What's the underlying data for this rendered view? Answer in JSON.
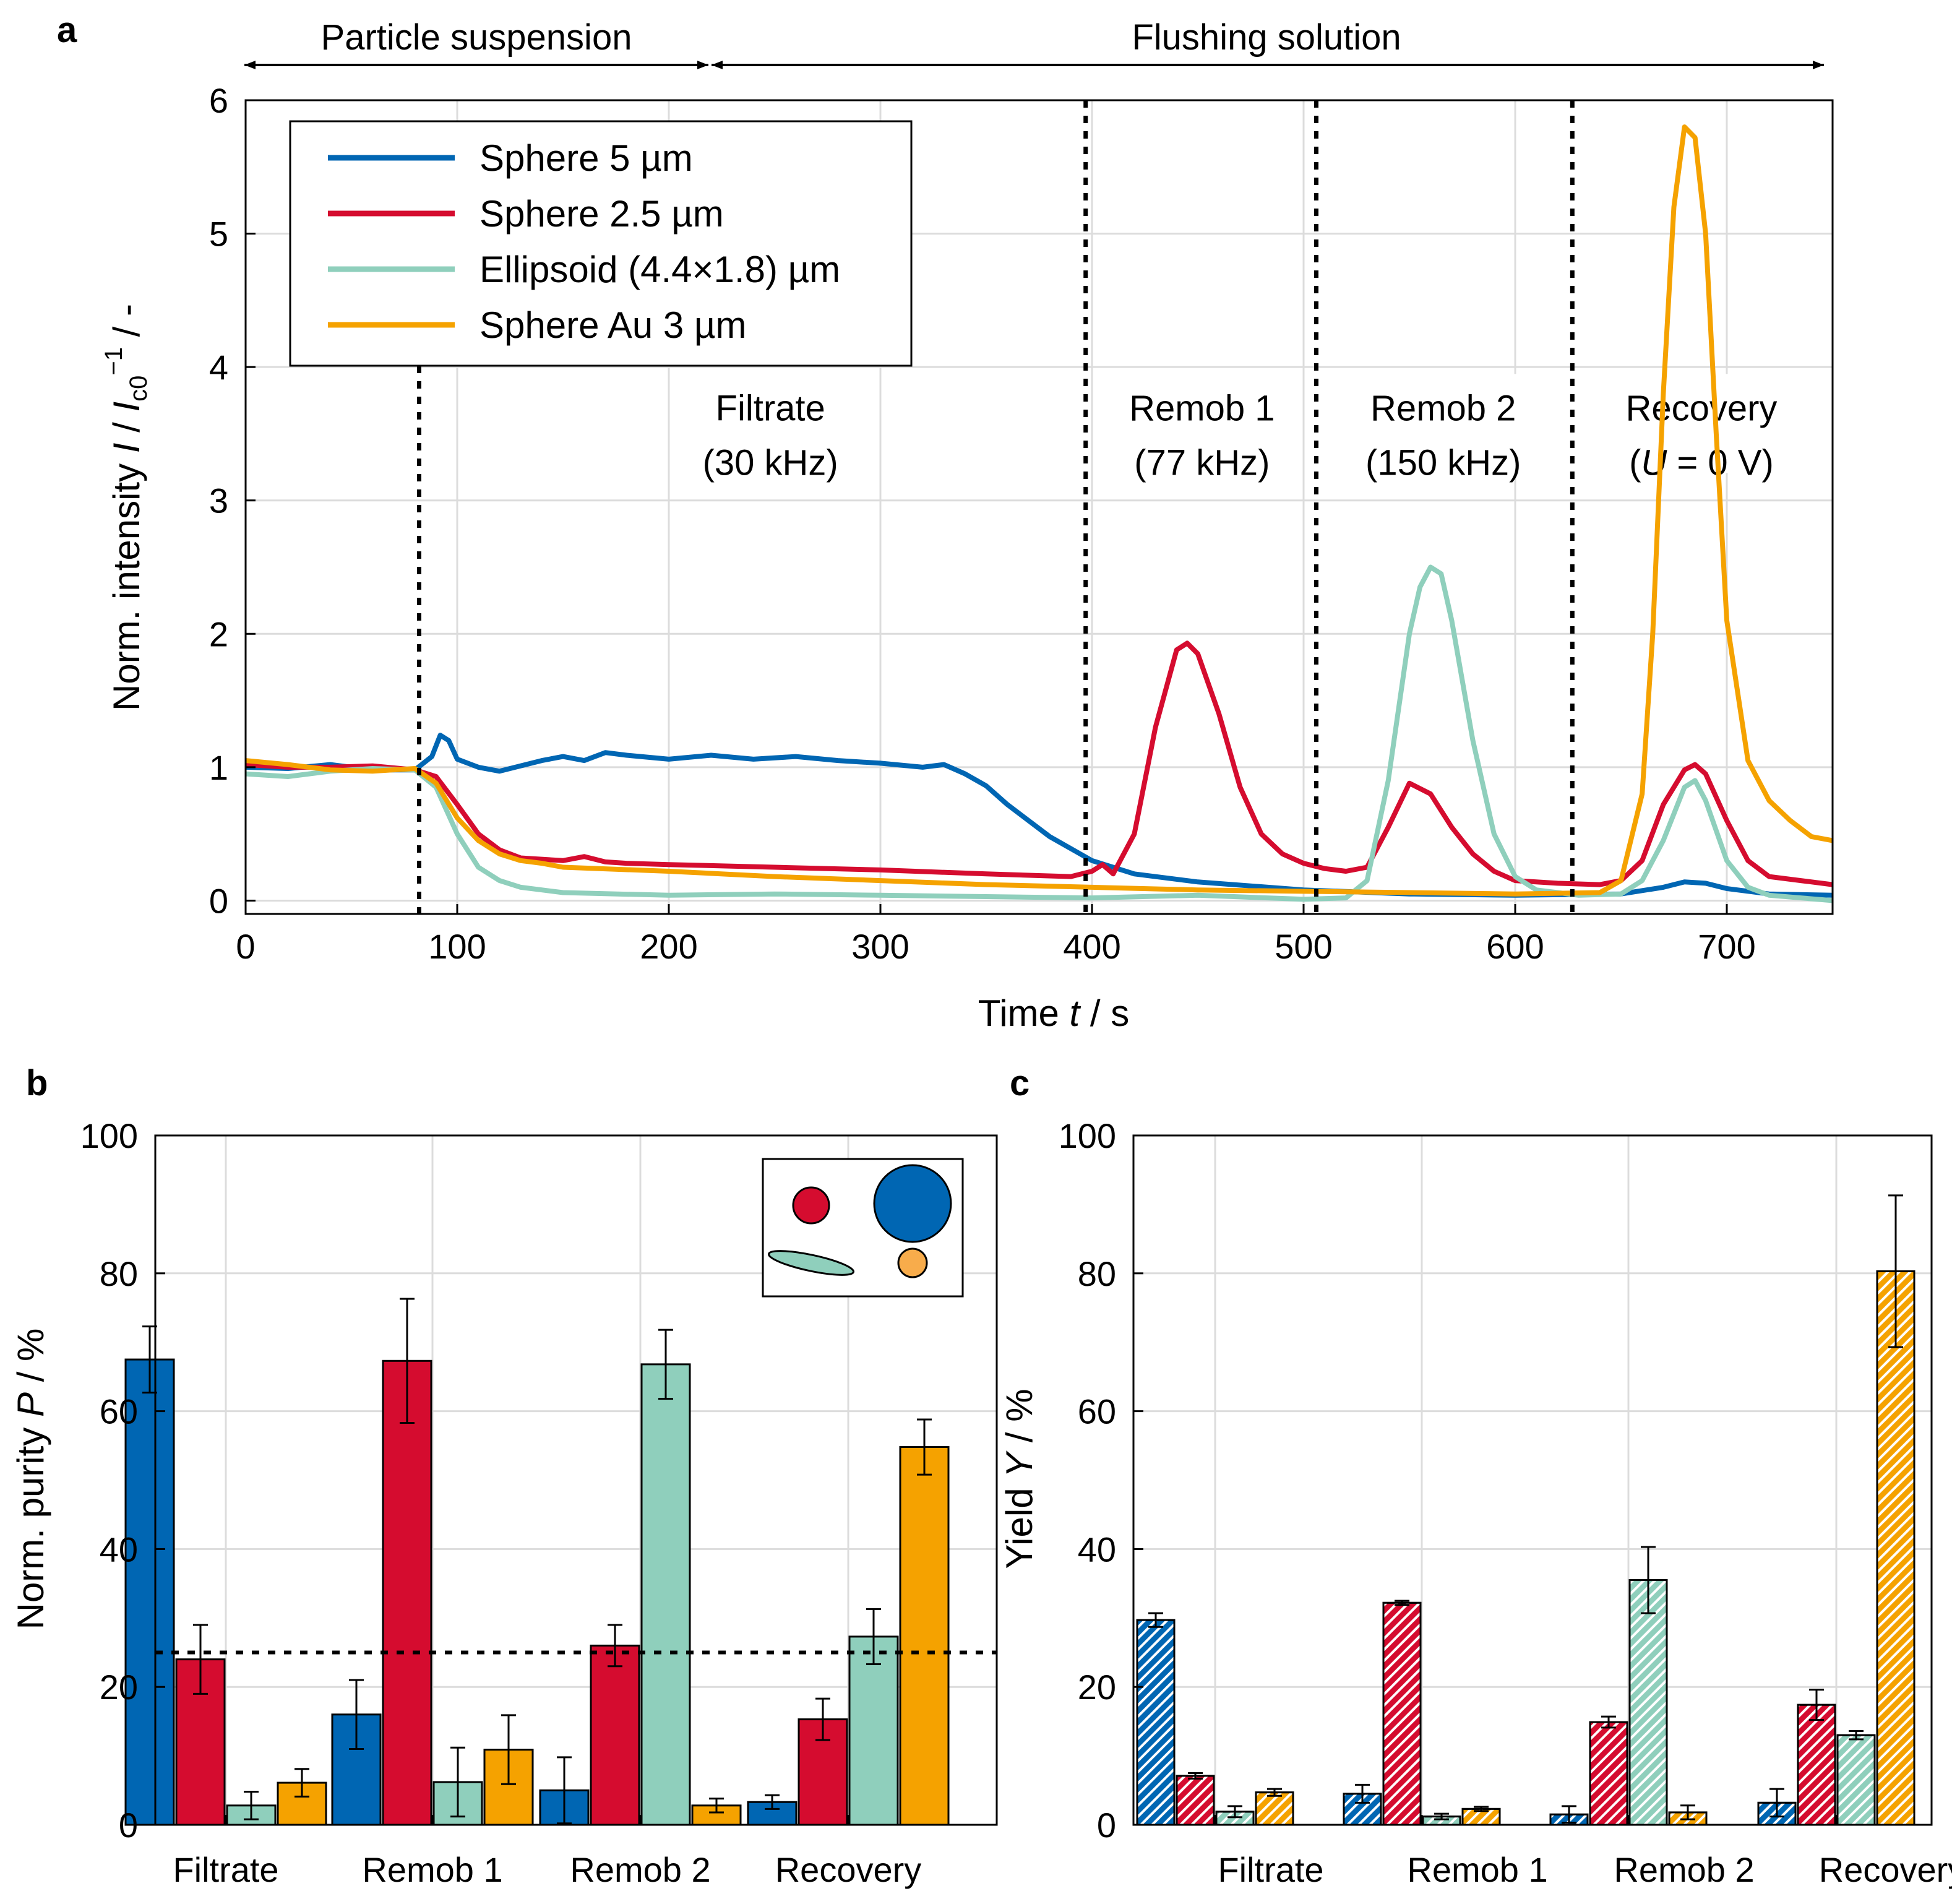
{
  "colors": {
    "sphere5": "#0066b3",
    "sphere25": "#d50c2f",
    "ellipsoid": "#8fcfbc",
    "au3": "#f5a200",
    "grid": "#dcdcdc"
  },
  "chart_data": [
    {
      "panel": "a",
      "type": "line",
      "xlabel": "Time t / s",
      "ylabel": "Norm. intensity I / Ic0⁻¹ / -",
      "xlim": [
        0,
        750
      ],
      "ylim": [
        -0.1,
        6
      ],
      "xticks": [
        "0",
        "100",
        "200",
        "300",
        "400",
        "500",
        "600",
        "700"
      ],
      "yticks": [
        "0",
        "1",
        "2",
        "3",
        "4",
        "5",
        "6"
      ],
      "grid": true,
      "legend_position": "top-left",
      "top_annotations": {
        "left": "Particle suspension",
        "right": "Flushing solution",
        "boundary_x": 222
      },
      "phase_lines_x": [
        82,
        397,
        506,
        627
      ],
      "phase_labels": [
        {
          "line1": "Filtrate",
          "line2": "(30 kHz)",
          "x": 248
        },
        {
          "line1": "Remob 1",
          "line2": "(77 kHz)",
          "x": 452
        },
        {
          "line1": "Remob 2",
          "line2": "(150 kHz)",
          "x": 566
        },
        {
          "line1": "Recovery",
          "line2": "(U = 0 V)",
          "x": 688
        }
      ],
      "series": [
        {
          "name": "Sphere 5 µm",
          "color_key": "sphere5",
          "x": [
            0,
            20,
            40,
            60,
            80,
            88,
            92,
            96,
            100,
            110,
            120,
            140,
            150,
            160,
            170,
            180,
            200,
            220,
            240,
            260,
            280,
            300,
            320,
            330,
            340,
            350,
            360,
            380,
            400,
            420,
            450,
            500,
            550,
            600,
            650,
            670,
            680,
            690,
            700,
            720,
            750
          ],
          "y": [
            1.0,
            0.99,
            1.02,
            0.98,
            0.98,
            1.08,
            1.24,
            1.2,
            1.06,
            1.0,
            0.97,
            1.05,
            1.08,
            1.05,
            1.11,
            1.09,
            1.06,
            1.09,
            1.06,
            1.08,
            1.05,
            1.03,
            1.0,
            1.02,
            0.95,
            0.86,
            0.72,
            0.48,
            0.3,
            0.2,
            0.14,
            0.08,
            0.05,
            0.04,
            0.05,
            0.1,
            0.14,
            0.13,
            0.09,
            0.05,
            0.04
          ]
        },
        {
          "name": "Sphere 2.5 µm",
          "color_key": "sphere25",
          "x": [
            0,
            20,
            40,
            60,
            80,
            90,
            100,
            110,
            120,
            130,
            150,
            160,
            170,
            180,
            200,
            250,
            300,
            350,
            390,
            400,
            405,
            410,
            420,
            430,
            440,
            445,
            450,
            460,
            470,
            480,
            490,
            500,
            510,
            520,
            530,
            540,
            550,
            560,
            570,
            580,
            590,
            600,
            620,
            640,
            650,
            660,
            670,
            680,
            685,
            690,
            700,
            710,
            720,
            750
          ],
          "y": [
            1.02,
            1.0,
            1.0,
            1.01,
            0.98,
            0.93,
            0.72,
            0.5,
            0.38,
            0.32,
            0.3,
            0.33,
            0.29,
            0.28,
            0.27,
            0.25,
            0.23,
            0.2,
            0.18,
            0.22,
            0.27,
            0.2,
            0.5,
            1.3,
            1.88,
            1.93,
            1.85,
            1.4,
            0.85,
            0.5,
            0.35,
            0.28,
            0.24,
            0.22,
            0.25,
            0.55,
            0.88,
            0.8,
            0.55,
            0.35,
            0.22,
            0.15,
            0.13,
            0.12,
            0.15,
            0.3,
            0.72,
            0.98,
            1.02,
            0.95,
            0.6,
            0.3,
            0.18,
            0.12
          ]
        },
        {
          "name": "Ellipsoid (4.4×1.8) µm",
          "color_key": "ellipsoid",
          "x": [
            0,
            20,
            40,
            60,
            80,
            90,
            100,
            110,
            120,
            130,
            140,
            150,
            200,
            250,
            300,
            350,
            400,
            450,
            500,
            520,
            530,
            540,
            550,
            555,
            560,
            565,
            570,
            580,
            590,
            600,
            610,
            630,
            650,
            660,
            670,
            680,
            685,
            690,
            700,
            710,
            720,
            750
          ],
          "y": [
            0.95,
            0.93,
            0.97,
            0.99,
            0.98,
            0.85,
            0.5,
            0.25,
            0.15,
            0.1,
            0.08,
            0.06,
            0.04,
            0.05,
            0.04,
            0.03,
            0.02,
            0.04,
            0.01,
            0.02,
            0.15,
            0.9,
            2.0,
            2.35,
            2.5,
            2.45,
            2.1,
            1.2,
            0.5,
            0.18,
            0.08,
            0.04,
            0.05,
            0.15,
            0.45,
            0.85,
            0.9,
            0.75,
            0.3,
            0.1,
            0.04,
            0.0
          ]
        },
        {
          "name": "Sphere Au 3 µm",
          "color_key": "au3",
          "x": [
            0,
            20,
            40,
            60,
            80,
            90,
            100,
            110,
            120,
            130,
            140,
            150,
            200,
            250,
            300,
            350,
            400,
            450,
            500,
            550,
            600,
            640,
            650,
            660,
            665,
            670,
            675,
            680,
            685,
            690,
            695,
            700,
            710,
            720,
            730,
            740,
            750
          ],
          "y": [
            1.05,
            1.02,
            0.98,
            0.97,
            0.99,
            0.88,
            0.62,
            0.45,
            0.35,
            0.3,
            0.28,
            0.25,
            0.22,
            0.18,
            0.15,
            0.12,
            0.1,
            0.08,
            0.07,
            0.06,
            0.05,
            0.06,
            0.15,
            0.8,
            2.0,
            3.8,
            5.2,
            5.8,
            5.72,
            5.0,
            3.5,
            2.1,
            1.05,
            0.75,
            0.6,
            0.48,
            0.45
          ]
        }
      ]
    },
    {
      "panel": "b",
      "type": "bar",
      "ylabel": "Norm. purity P / %",
      "ylim": [
        0,
        100
      ],
      "yticks": [
        "0",
        "20",
        "40",
        "60",
        "80",
        "100"
      ],
      "categories": [
        "Filtrate",
        "Remob 1",
        "Remob 2",
        "Recovery"
      ],
      "reference_line_y": 25,
      "grid": true,
      "hatched": false,
      "series": [
        {
          "name": "Sphere 5 µm",
          "color_key": "sphere5",
          "values": [
            67.5,
            16.0,
            5.0,
            3.3
          ],
          "errors": [
            4.8,
            5.0,
            4.8,
            1.0
          ]
        },
        {
          "name": "Sphere 2.5 µm",
          "color_key": "sphere25",
          "values": [
            24.0,
            67.3,
            26.0,
            15.3
          ],
          "errors": [
            5.0,
            9.0,
            3.0,
            3.0
          ]
        },
        {
          "name": "Ellipsoid (4.4×1.8) µm",
          "color_key": "ellipsoid",
          "values": [
            2.8,
            6.2,
            66.8,
            27.3
          ],
          "errors": [
            2.0,
            5.0,
            5.0,
            4.0
          ]
        },
        {
          "name": "Sphere Au 3 µm",
          "color_key": "au3",
          "values": [
            6.1,
            10.9,
            2.8,
            54.8
          ],
          "errors": [
            2.0,
            5.0,
            1.0,
            4.0
          ]
        }
      ]
    },
    {
      "panel": "c",
      "type": "bar",
      "ylabel": "Yield Y / %",
      "ylim": [
        0,
        100
      ],
      "yticks": [
        "0",
        "20",
        "40",
        "60",
        "80",
        "100"
      ],
      "categories": [
        "Filtrate",
        "Remob 1",
        "Remob 2",
        "Recovery"
      ],
      "grid": true,
      "hatched": true,
      "series": [
        {
          "name": "Sphere 5 µm",
          "color_key": "sphere5",
          "values": [
            29.7,
            4.5,
            1.5,
            3.2
          ],
          "errors": [
            1.0,
            1.3,
            1.2,
            2.0
          ]
        },
        {
          "name": "Sphere 2.5 µm",
          "color_key": "sphere25",
          "values": [
            7.1,
            32.2,
            14.9,
            17.4
          ],
          "errors": [
            0.4,
            0.3,
            0.8,
            2.2
          ]
        },
        {
          "name": "Ellipsoid (4.4×1.8) µm",
          "color_key": "ellipsoid",
          "values": [
            1.9,
            1.2,
            35.5,
            13.0
          ],
          "errors": [
            0.8,
            0.4,
            4.8,
            0.6
          ]
        },
        {
          "name": "Sphere Au 3 µm",
          "color_key": "au3",
          "values": [
            4.7,
            2.3,
            1.8,
            80.3
          ],
          "errors": [
            0.5,
            0.3,
            1.0,
            11.0
          ]
        }
      ]
    }
  ],
  "panel_labels": {
    "a": "a",
    "b": "b",
    "c": "c"
  },
  "legend": {
    "items": [
      "Sphere 5 µm",
      "Sphere 2.5 µm",
      "Ellipsoid (4.4×1.8) µm",
      "Sphere Au 3 µm"
    ]
  },
  "axis_text": {
    "a_xlabel_main": "Time ",
    "a_xlabel_italic": "t",
    "a_xlabel_tail": " / s",
    "a_ylabel_main": "Norm. intensity ",
    "a_ylabel_I": "I",
    "a_ylabel_mid": " / ",
    "a_ylabel_I2": "I",
    "a_ylabel_sub": "c0",
    "a_ylabel_sup": "−1",
    "a_ylabel_tail": " / -",
    "b_ylabel_main": "Norm. purity ",
    "b_ylabel_italic": "P",
    "b_ylabel_tail": " / %",
    "c_ylabel_main": "Yield ",
    "c_ylabel_italic": "Y",
    "c_ylabel_tail": " / %",
    "recovery_u_italic": "U",
    "recovery_u_tail": " = 0 V)",
    "recovery_u_open": "("
  }
}
